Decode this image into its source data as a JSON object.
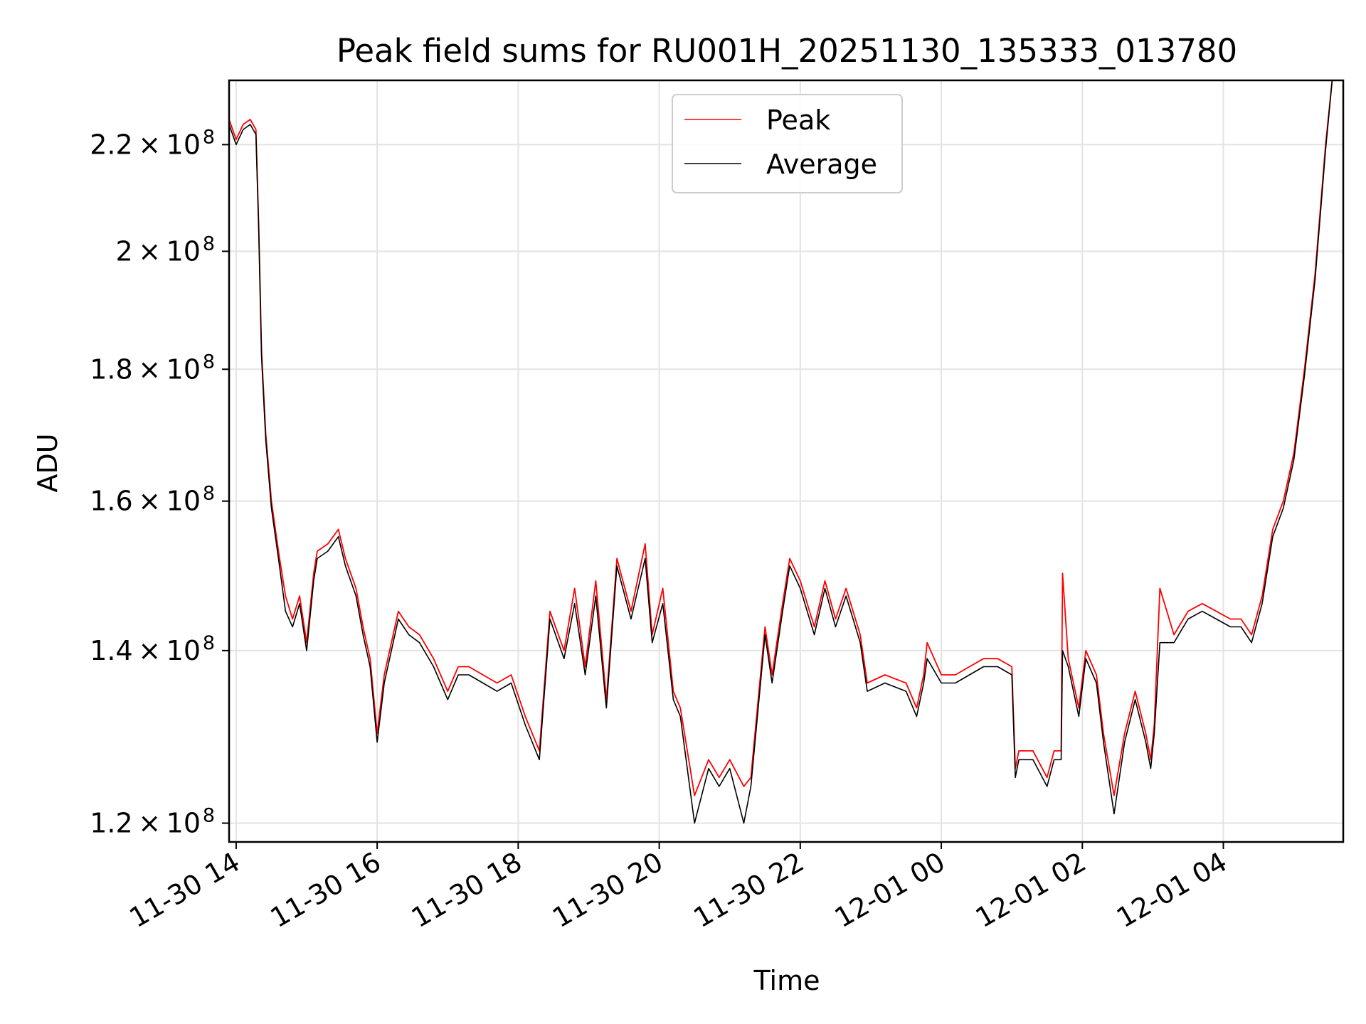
{
  "chart_data": {
    "type": "line",
    "title": "Peak field sums for RU001H_20251130_135333_013780",
    "xlabel": "Time",
    "ylabel": "ADU",
    "yscale": "log",
    "grid": true,
    "legend_position": "top-center",
    "xlim": [
      13.9,
      29.7
    ],
    "ylim": [
      118000000.0,
      233000000.0
    ],
    "x_ticks": [
      {
        "value": 14,
        "label": "11-30 14"
      },
      {
        "value": 16,
        "label": "11-30 16"
      },
      {
        "value": 18,
        "label": "11-30 18"
      },
      {
        "value": 20,
        "label": "11-30 20"
      },
      {
        "value": 22,
        "label": "11-30 22"
      },
      {
        "value": 24,
        "label": "12-01 00"
      },
      {
        "value": 26,
        "label": "12-01 02"
      },
      {
        "value": 28,
        "label": "12-01 04"
      }
    ],
    "y_ticks": [
      {
        "value": 120000000.0,
        "mantissa": "1.2",
        "exponent": "8"
      },
      {
        "value": 140000000.0,
        "mantissa": "1.4",
        "exponent": "8"
      },
      {
        "value": 160000000.0,
        "mantissa": "1.6",
        "exponent": "8"
      },
      {
        "value": 180000000.0,
        "mantissa": "1.8",
        "exponent": "8"
      },
      {
        "value": 200000000.0,
        "mantissa": "2",
        "exponent": "8"
      },
      {
        "value": 220000000.0,
        "mantissa": "2.2",
        "exponent": "8"
      }
    ],
    "x_unit": "hours since 2025-11-30 00:00",
    "series": [
      {
        "name": "Peak",
        "color": "#ff0000",
        "x": [
          13.9,
          14.0,
          14.1,
          14.2,
          14.28,
          14.32,
          14.36,
          14.42,
          14.5,
          14.6,
          14.7,
          14.8,
          14.9,
          15.0,
          15.1,
          15.15,
          15.3,
          15.45,
          15.55,
          15.7,
          15.8,
          15.9,
          16.0,
          16.1,
          16.3,
          16.45,
          16.6,
          16.8,
          17.0,
          17.15,
          17.3,
          17.5,
          17.7,
          17.9,
          18.1,
          18.3,
          18.45,
          18.65,
          18.8,
          18.95,
          19.1,
          19.25,
          19.4,
          19.6,
          19.8,
          19.9,
          20.05,
          20.2,
          20.3,
          20.5,
          20.7,
          20.85,
          21.0,
          21.2,
          21.3,
          21.5,
          21.6,
          21.75,
          21.85,
          22.0,
          22.2,
          22.35,
          22.5,
          22.65,
          22.85,
          22.95,
          23.2,
          23.5,
          23.65,
          23.75,
          23.8,
          24.0,
          24.2,
          24.4,
          24.6,
          24.8,
          25.0,
          25.05,
          25.1,
          25.3,
          25.5,
          25.6,
          25.7,
          25.72,
          25.8,
          25.95,
          26.05,
          26.2,
          26.3,
          26.45,
          26.6,
          26.75,
          26.9,
          26.97,
          27.02,
          27.1,
          27.3,
          27.5,
          27.7,
          27.9,
          28.1,
          28.25,
          28.4,
          28.55,
          28.7,
          28.85,
          29.0,
          29.15,
          29.3,
          29.45,
          29.55
        ],
        "values": [
          225000000.0,
          221000000.0,
          224000000.0,
          225000000.0,
          223000000.0,
          205000000.0,
          183000000.0,
          170000000.0,
          160000000.0,
          153000000.0,
          147000000.0,
          144000000.0,
          147000000.0,
          141000000.0,
          150000000.0,
          153000000.0,
          154000000.0,
          156000000.0,
          152000000.0,
          148000000.0,
          143000000.0,
          139000000.0,
          130000000.0,
          137000000.0,
          145000000.0,
          143000000.0,
          142000000.0,
          139000000.0,
          135000000.0,
          138000000.0,
          138000000.0,
          137000000.0,
          136000000.0,
          137000000.0,
          132000000.0,
          128000000.0,
          145000000.0,
          140000000.0,
          148000000.0,
          138000000.0,
          149000000.0,
          134000000.0,
          152000000.0,
          145000000.0,
          154000000.0,
          142000000.0,
          148000000.0,
          135000000.0,
          133000000.0,
          123000000.0,
          127000000.0,
          125000000.0,
          127000000.0,
          124000000.0,
          125000000.0,
          143000000.0,
          137000000.0,
          146000000.0,
          152000000.0,
          149000000.0,
          143000000.0,
          149000000.0,
          144000000.0,
          148000000.0,
          142000000.0,
          136000000.0,
          137000000.0,
          136000000.0,
          133000000.0,
          137000000.0,
          141000000.0,
          137000000.0,
          137000000.0,
          138000000.0,
          139000000.0,
          139000000.0,
          138000000.0,
          126000000.0,
          128000000.0,
          128000000.0,
          125000000.0,
          128000000.0,
          128000000.0,
          150000000.0,
          139000000.0,
          133000000.0,
          140000000.0,
          137000000.0,
          130000000.0,
          123000000.0,
          130000000.0,
          135000000.0,
          130000000.0,
          127000000.0,
          131000000.0,
          148000000.0,
          142000000.0,
          145000000.0,
          146000000.0,
          145000000.0,
          144000000.0,
          144000000.0,
          142000000.0,
          147000000.0,
          156000000.0,
          160000000.0,
          167000000.0,
          180000000.0,
          196000000.0,
          220000000.0,
          234000000.0
        ]
      },
      {
        "name": "Average",
        "color": "#000000",
        "x": [
          13.9,
          14.0,
          14.1,
          14.2,
          14.28,
          14.32,
          14.36,
          14.42,
          14.5,
          14.6,
          14.7,
          14.8,
          14.9,
          15.0,
          15.1,
          15.15,
          15.3,
          15.45,
          15.55,
          15.7,
          15.8,
          15.9,
          16.0,
          16.1,
          16.3,
          16.45,
          16.6,
          16.8,
          17.0,
          17.15,
          17.3,
          17.5,
          17.7,
          17.9,
          18.1,
          18.3,
          18.45,
          18.65,
          18.8,
          18.95,
          19.1,
          19.25,
          19.4,
          19.6,
          19.8,
          19.9,
          20.05,
          20.2,
          20.3,
          20.5,
          20.7,
          20.85,
          21.0,
          21.2,
          21.3,
          21.5,
          21.6,
          21.75,
          21.85,
          22.0,
          22.2,
          22.35,
          22.5,
          22.65,
          22.85,
          22.95,
          23.2,
          23.5,
          23.65,
          23.75,
          23.8,
          24.0,
          24.2,
          24.4,
          24.6,
          24.8,
          25.0,
          25.05,
          25.1,
          25.3,
          25.5,
          25.6,
          25.7,
          25.72,
          25.8,
          25.95,
          26.05,
          26.2,
          26.3,
          26.45,
          26.6,
          26.75,
          26.9,
          26.97,
          27.02,
          27.1,
          27.3,
          27.5,
          27.7,
          27.9,
          28.1,
          28.25,
          28.4,
          28.55,
          28.7,
          28.85,
          29.0,
          29.15,
          29.3,
          29.45,
          29.55
        ],
        "values": [
          224000000.0,
          220000000.0,
          223000000.0,
          224000000.0,
          222000000.0,
          204000000.0,
          182000000.0,
          169000000.0,
          159000000.0,
          152000000.0,
          145000000.0,
          143000000.0,
          146000000.0,
          140000000.0,
          149000000.0,
          152000000.0,
          153000000.0,
          155000000.0,
          151000000.0,
          147000000.0,
          142000000.0,
          138000000.0,
          129000000.0,
          136000000.0,
          144000000.0,
          142000000.0,
          141000000.0,
          138000000.0,
          134000000.0,
          137000000.0,
          137000000.0,
          136000000.0,
          135000000.0,
          136000000.0,
          131000000.0,
          127000000.0,
          144000000.0,
          139000000.0,
          146000000.0,
          137000000.0,
          147000000.0,
          133000000.0,
          151000000.0,
          144000000.0,
          152000000.0,
          141000000.0,
          146000000.0,
          134000000.0,
          132000000.0,
          120000000.0,
          126000000.0,
          124000000.0,
          126000000.0,
          120000000.0,
          124000000.0,
          142000000.0,
          136000000.0,
          145000000.0,
          151000000.0,
          148000000.0,
          142000000.0,
          148000000.0,
          143000000.0,
          147000000.0,
          141000000.0,
          135000000.0,
          136000000.0,
          135000000.0,
          132000000.0,
          136000000.0,
          139000000.0,
          136000000.0,
          136000000.0,
          137000000.0,
          138000000.0,
          138000000.0,
          137000000.0,
          125000000.0,
          127000000.0,
          127000000.0,
          124000000.0,
          127000000.0,
          127000000.0,
          140000000.0,
          138000000.0,
          132000000.0,
          139000000.0,
          136000000.0,
          129000000.0,
          121000000.0,
          129000000.0,
          134000000.0,
          129000000.0,
          126000000.0,
          130000000.0,
          141000000.0,
          141000000.0,
          144000000.0,
          145000000.0,
          144000000.0,
          143000000.0,
          143000000.0,
          141000000.0,
          146000000.0,
          155000000.0,
          159000000.0,
          166000000.0,
          179000000.0,
          195000000.0,
          219000000.0,
          234000000.0
        ]
      }
    ]
  }
}
